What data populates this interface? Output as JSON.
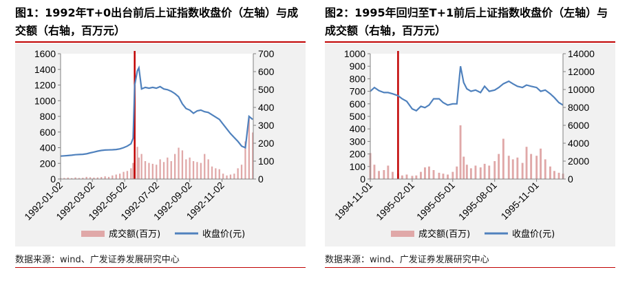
{
  "charts": [
    {
      "title": "图1：1992年T+0出台前后上证指数收盘价（左轴）与成交额（右轴，百万元）",
      "source": "数据来源：wind、广发证券发展研究中心",
      "colors": {
        "bar": "#e0a8a8",
        "line": "#4f81bd",
        "marker": "#c00000"
      },
      "chart_data": {
        "type": "bar+line",
        "dates": [
          "1992-01-02",
          "1992-01-09",
          "1992-01-16",
          "1992-01-23",
          "1992-01-30",
          "1992-02-06",
          "1992-02-13",
          "1992-02-20",
          "1992-02-27",
          "1992-03-05",
          "1992-03-12",
          "1992-03-19",
          "1992-03-26",
          "1992-04-02",
          "1992-04-09",
          "1992-04-16",
          "1992-04-23",
          "1992-04-30",
          "1992-05-07",
          "1992-05-14",
          "1992-05-18",
          "1992-05-21",
          "1992-05-26",
          "1992-05-29",
          "1992-06-03",
          "1992-06-10",
          "1992-06-17",
          "1992-06-24",
          "1992-07-01",
          "1992-07-08",
          "1992-07-15",
          "1992-07-22",
          "1992-07-29",
          "1992-08-05",
          "1992-08-12",
          "1992-08-19",
          "1992-08-26",
          "1992-09-02",
          "1992-09-09",
          "1992-09-16",
          "1992-09-23",
          "1992-09-30",
          "1992-10-07",
          "1992-10-14",
          "1992-10-21",
          "1992-10-28",
          "1992-11-04",
          "1992-11-11",
          "1992-11-18",
          "1992-11-25",
          "1992-12-02",
          "1992-12-09",
          "1992-12-16",
          "1992-12-23",
          "1992-12-30"
        ],
        "close": [
          293,
          296,
          300,
          304,
          310,
          313,
          316,
          322,
          334,
          345,
          356,
          365,
          370,
          372,
          374,
          377,
          385,
          400,
          420,
          450,
          520,
          1200,
          1380,
          1420,
          1150,
          1170,
          1160,
          1170,
          1160,
          1180,
          1150,
          1140,
          1120,
          1090,
          1050,
          960,
          900,
          880,
          840,
          870,
          880,
          860,
          850,
          820,
          790,
          760,
          700,
          640,
          580,
          530,
          480,
          420,
          400,
          800,
          760
        ],
        "turnover": [
          5,
          6,
          8,
          5,
          9,
          6,
          7,
          12,
          10,
          8,
          9,
          11,
          15,
          12,
          20,
          25,
          30,
          40,
          45,
          60,
          90,
          230,
          180,
          120,
          140,
          100,
          90,
          85,
          80,
          110,
          95,
          120,
          100,
          140,
          175,
          160,
          110,
          120,
          100,
          95,
          90,
          140,
          110,
          70,
          60,
          55,
          30,
          20,
          25,
          30,
          60,
          80,
          210,
          340,
          260
        ],
        "event_date": "1992-05-21",
        "x_tick_labels": [
          "1992-01-02",
          "1992-03-02",
          "1992-05-02",
          "1992-07-02",
          "1992-09-02",
          "1992-11-02"
        ],
        "x_tick_dates": [
          "1992-01-02",
          "1992-03-02",
          "1992-05-02",
          "1992-07-02",
          "1992-09-02",
          "1992-11-02"
        ],
        "x_range": [
          "1992-01-02",
          "1992-12-31"
        ],
        "y_left": {
          "min": 0,
          "max": 1600,
          "ticks": [
            0,
            200,
            400,
            600,
            800,
            1000,
            1200,
            1400,
            1600
          ]
        },
        "y_right": {
          "min": 0,
          "max": 700,
          "ticks": [
            0,
            100,
            200,
            300,
            400,
            500,
            600,
            700
          ]
        },
        "legend": {
          "bar": "成交额(百万)",
          "line": "收盘价(元)"
        }
      }
    },
    {
      "title": "图2：1995年回归至T+1前后上证指数收盘价（左轴）与成交额（右轴，百万元）",
      "source": "数据来源：wind、广发证券发展研究中心",
      "colors": {
        "bar": "#e0a8a8",
        "line": "#4f81bd",
        "marker": "#c00000"
      },
      "chart_data": {
        "type": "bar+line",
        "dates": [
          "1994-11-01",
          "1994-11-10",
          "1994-11-20",
          "1994-12-01",
          "1994-12-10",
          "1994-12-20",
          "1995-01-01",
          "1995-01-10",
          "1995-01-20",
          "1995-02-01",
          "1995-02-10",
          "1995-02-20",
          "1995-03-01",
          "1995-03-10",
          "1995-03-20",
          "1995-04-01",
          "1995-04-10",
          "1995-04-20",
          "1995-05-01",
          "1995-05-10",
          "1995-05-18",
          "1995-05-25",
          "1995-06-01",
          "1995-06-10",
          "1995-06-20",
          "1995-07-01",
          "1995-07-10",
          "1995-07-20",
          "1995-08-01",
          "1995-08-10",
          "1995-08-20",
          "1995-09-01",
          "1995-09-10",
          "1995-09-20",
          "1995-10-01",
          "1995-10-10",
          "1995-10-20",
          "1995-11-01",
          "1995-11-10",
          "1995-11-20",
          "1995-12-01",
          "1995-12-10",
          "1995-12-20",
          "1995-12-29"
        ],
        "close": [
          700,
          730,
          705,
          690,
          690,
          680,
          665,
          640,
          620,
          560,
          545,
          580,
          570,
          590,
          640,
          640,
          610,
          590,
          600,
          600,
          900,
          770,
          720,
          700,
          710,
          690,
          740,
          700,
          710,
          730,
          760,
          780,
          760,
          740,
          730,
          750,
          740,
          730,
          700,
          710,
          680,
          650,
          610,
          590
        ],
        "turnover": [
          2900,
          1600,
          900,
          1000,
          1500,
          800,
          600,
          400,
          500,
          350,
          400,
          800,
          1300,
          1400,
          1000,
          700,
          600,
          500,
          800,
          1400,
          6000,
          2500,
          1600,
          1200,
          1500,
          1300,
          1700,
          1500,
          2000,
          2800,
          4500,
          2600,
          2200,
          2400,
          1800,
          3600,
          2800,
          2600,
          3400,
          2200,
          1400,
          900,
          700,
          600
        ],
        "event_date": "1995-01-01",
        "x_tick_labels": [
          "1994-11-01",
          "1995-02-01",
          "1995-05-01",
          "1995-08-01",
          "1995-11-01"
        ],
        "x_tick_dates": [
          "1994-11-01",
          "1995-02-01",
          "1995-05-01",
          "1995-08-01",
          "1995-11-01"
        ],
        "x_range": [
          "1994-11-01",
          "1995-12-29"
        ],
        "y_left": {
          "min": 0,
          "max": 1000,
          "ticks": [
            0,
            100,
            200,
            300,
            400,
            500,
            600,
            700,
            800,
            900,
            1000
          ]
        },
        "y_right": {
          "min": 0,
          "max": 14000,
          "ticks": [
            0,
            2000,
            4000,
            6000,
            8000,
            10000,
            12000,
            14000
          ]
        },
        "legend": {
          "bar": "成交额(百万)",
          "line": "收盘价(元)"
        }
      }
    }
  ]
}
